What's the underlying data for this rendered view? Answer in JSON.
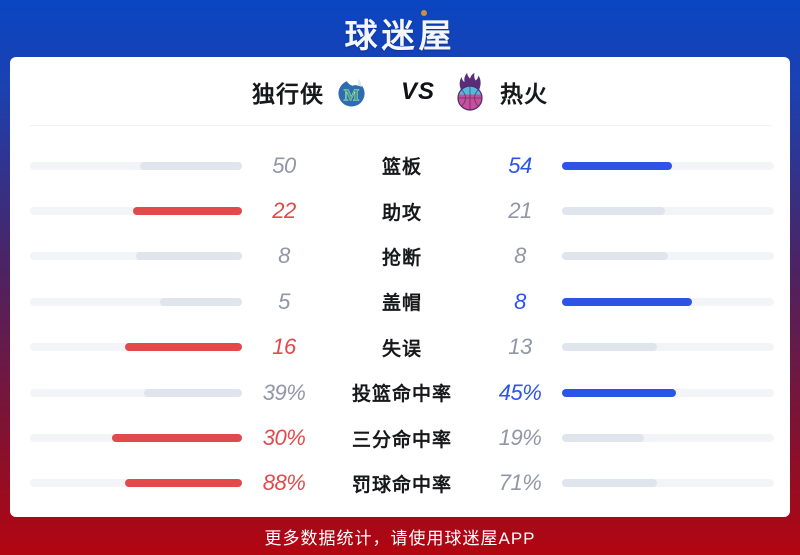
{
  "logo": {
    "text": "球迷屋"
  },
  "match_header": {
    "home_team": "独行侠",
    "vs_label": "VS",
    "away_team": "热火",
    "home_logo_icon": "mavericks-logo",
    "away_logo_icon": "heat-logo"
  },
  "stats": {
    "rows": [
      {
        "label": "篮板",
        "home": "50",
        "away": "54",
        "winner": "away",
        "home_bar_pct": 48.1,
        "away_bar_pct": 51.9
      },
      {
        "label": "助攻",
        "home": "22",
        "away": "21",
        "winner": "home",
        "home_bar_pct": 51.2,
        "away_bar_pct": 48.8
      },
      {
        "label": "抢断",
        "home": "8",
        "away": "8",
        "winner": "tie",
        "home_bar_pct": 50.0,
        "away_bar_pct": 50.0
      },
      {
        "label": "盖帽",
        "home": "5",
        "away": "8",
        "winner": "away",
        "home_bar_pct": 38.5,
        "away_bar_pct": 61.5
      },
      {
        "label": "失误",
        "home": "16",
        "away": "13",
        "winner": "home",
        "home_bar_pct": 55.2,
        "away_bar_pct": 44.8
      },
      {
        "label": "投篮命中率",
        "home": "39%",
        "away": "45%",
        "winner": "away",
        "home_bar_pct": 46.4,
        "away_bar_pct": 53.6
      },
      {
        "label": "三分命中率",
        "home": "30%",
        "away": "19%",
        "winner": "home",
        "home_bar_pct": 61.2,
        "away_bar_pct": 38.8
      },
      {
        "label": "罚球命中率",
        "home": "88%",
        "away": "71%",
        "winner": "home",
        "home_bar_pct": 55.3,
        "away_bar_pct": 44.7
      }
    ]
  },
  "footer": {
    "text": "更多数据统计，请使用球迷屋APP"
  },
  "colors": {
    "home_accent": "#E04A4B",
    "away_accent": "#2C55E8",
    "neutral_fill": "#DFE4ED",
    "bar_track": "#F3F4F7",
    "muted_value": "#9296A6",
    "label_text": "#17181A",
    "bg_top": "#0A45C2",
    "bg_mid": "#4C2363",
    "bg_bottom": "#B30510",
    "logo_dot": "#C9913F"
  },
  "chart_data": {
    "type": "bar",
    "title": "独行侠 VS 热火",
    "categories": [
      "篮板",
      "助攻",
      "抢断",
      "盖帽",
      "失误",
      "投篮命中率",
      "三分命中率",
      "罚球命中率"
    ],
    "series": [
      {
        "name": "独行侠",
        "values": [
          50,
          22,
          8,
          5,
          16,
          39,
          30,
          88
        ]
      },
      {
        "name": "热火",
        "values": [
          54,
          21,
          8,
          8,
          13,
          45,
          19,
          71
        ]
      }
    ],
    "value_units": [
      "count",
      "count",
      "count",
      "count",
      "count",
      "percent",
      "percent",
      "percent"
    ],
    "layout": "paired horizontal bars per category; home bars grow right-to-left, away bars grow left-to-right; bar length = value / (home+away) of row track",
    "highlight_rule": "larger value of each row is colored (home=red #E04A4B, away=blue #2C55E8); smaller/tied values are gray",
    "legend_position": "header row with team names and logos"
  }
}
